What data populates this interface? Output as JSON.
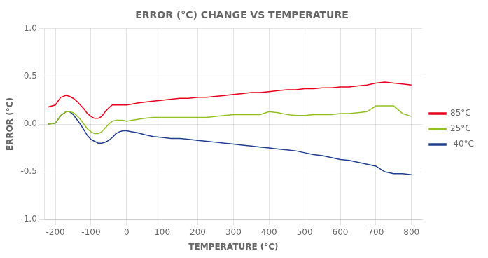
{
  "chart_data": {
    "type": "line",
    "title": "ERROR (°C) CHANGE VS TEMPERATURE",
    "xlabel": "TEMPERATURE (°C)",
    "ylabel": "ERROR (°C)",
    "x": [
      -220,
      -200,
      -185,
      -170,
      -160,
      -150,
      -140,
      -130,
      -120,
      -110,
      -100,
      -90,
      -80,
      -70,
      -60,
      -50,
      -40,
      -30,
      -20,
      -10,
      0,
      15,
      30,
      50,
      75,
      100,
      125,
      150,
      175,
      200,
      225,
      250,
      275,
      300,
      325,
      350,
      375,
      400,
      425,
      450,
      475,
      500,
      525,
      550,
      575,
      600,
      625,
      650,
      675,
      700,
      725,
      750,
      775,
      800
    ],
    "series": [
      {
        "name": "85°C",
        "color": "#e8001c",
        "values": [
          0.18,
          0.2,
          0.28,
          0.3,
          0.29,
          0.27,
          0.24,
          0.2,
          0.16,
          0.11,
          0.08,
          0.06,
          0.06,
          0.08,
          0.13,
          0.17,
          0.2,
          0.2,
          0.2,
          0.2,
          0.2,
          0.21,
          0.22,
          0.23,
          0.24,
          0.25,
          0.26,
          0.27,
          0.27,
          0.28,
          0.28,
          0.29,
          0.3,
          0.31,
          0.32,
          0.33,
          0.33,
          0.34,
          0.35,
          0.36,
          0.36,
          0.37,
          0.37,
          0.38,
          0.38,
          0.39,
          0.39,
          0.4,
          0.41,
          0.43,
          0.44,
          0.43,
          0.42,
          0.41
        ]
      },
      {
        "name": "25°C",
        "color": "#92c020",
        "values": [
          0.0,
          0.01,
          0.09,
          0.13,
          0.13,
          0.12,
          0.09,
          0.05,
          0.0,
          -0.05,
          -0.08,
          -0.1,
          -0.1,
          -0.08,
          -0.04,
          0.0,
          0.03,
          0.04,
          0.04,
          0.04,
          0.03,
          0.04,
          0.05,
          0.06,
          0.07,
          0.07,
          0.07,
          0.07,
          0.07,
          0.07,
          0.07,
          0.08,
          0.09,
          0.1,
          0.1,
          0.1,
          0.1,
          0.13,
          0.12,
          0.1,
          0.09,
          0.09,
          0.1,
          0.1,
          0.1,
          0.11,
          0.11,
          0.12,
          0.13,
          0.19,
          0.19,
          0.19,
          0.11,
          0.08
        ]
      },
      {
        "name": "-40°C",
        "color": "#1f3f8f",
        "values": [
          0.0,
          0.01,
          0.09,
          0.13,
          0.13,
          0.1,
          0.05,
          0.0,
          -0.06,
          -0.12,
          -0.16,
          -0.18,
          -0.2,
          -0.2,
          -0.19,
          -0.17,
          -0.14,
          -0.1,
          -0.08,
          -0.07,
          -0.07,
          -0.08,
          -0.09,
          -0.11,
          -0.13,
          -0.14,
          -0.15,
          -0.15,
          -0.16,
          -0.17,
          -0.18,
          -0.19,
          -0.2,
          -0.21,
          -0.22,
          -0.23,
          -0.24,
          -0.25,
          -0.26,
          -0.27,
          -0.28,
          -0.3,
          -0.32,
          -0.33,
          -0.35,
          -0.37,
          -0.38,
          -0.4,
          -0.42,
          -0.44,
          -0.5,
          -0.52,
          -0.52,
          -0.53
        ]
      }
    ],
    "xlim": [
      -230,
      830
    ],
    "ylim": [
      -1.0,
      1.0
    ],
    "xticks": [
      -200,
      -100,
      0,
      100,
      200,
      300,
      400,
      500,
      600,
      700,
      800
    ],
    "yticks": [
      {
        "value": -1.0,
        "label": "-1.0"
      },
      {
        "value": -0.5,
        "label": "-0.5"
      },
      {
        "value": 0.0,
        "label": "0.0"
      },
      {
        "value": 0.5,
        "label": "0.5"
      },
      {
        "value": 1.0,
        "label": "1.0"
      }
    ],
    "grid": true,
    "legend": "right"
  }
}
